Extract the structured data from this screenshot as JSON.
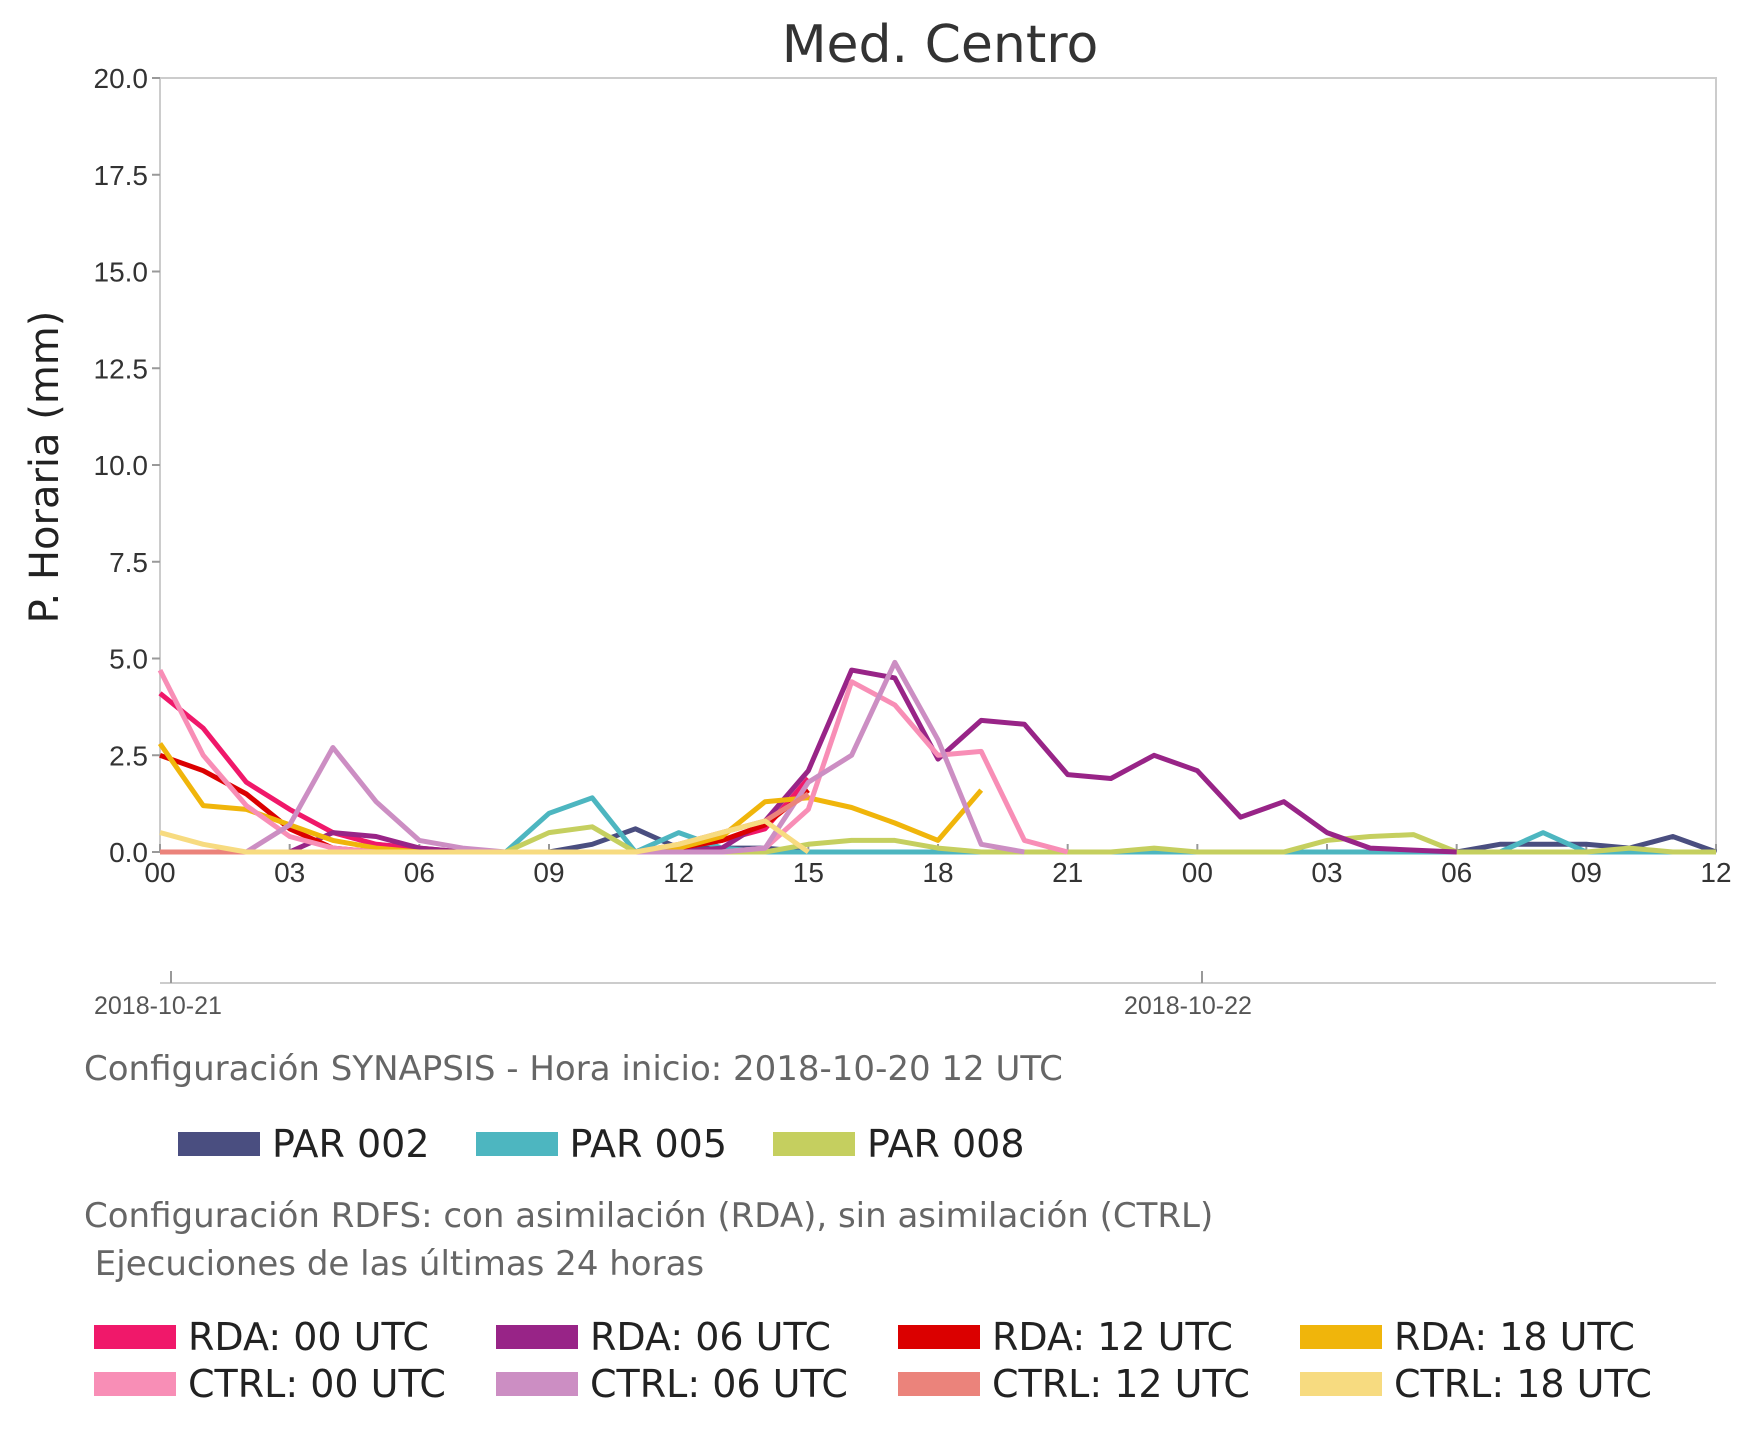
{
  "chart_data": {
    "type": "line",
    "title": "Med. Centro",
    "ylabel": "P. Horaria (mm)",
    "xlabel": "",
    "ylim": [
      0,
      20
    ],
    "yticks": [
      "0.0",
      "2.5",
      "5.0",
      "7.5",
      "10.0",
      "12.5",
      "15.0",
      "17.5",
      "20.0"
    ],
    "x_hours": [
      0,
      3,
      6,
      9,
      12,
      15,
      18,
      21,
      24,
      27,
      30,
      33,
      36
    ],
    "xtick_labels": [
      "00",
      "03",
      "06",
      "09",
      "12",
      "15",
      "18",
      "21",
      "00",
      "03",
      "06",
      "09",
      "12"
    ],
    "date_labels": [
      "2018-10-21",
      "2018-10-22"
    ],
    "grid": false,
    "series": [
      {
        "name": "PAR 002",
        "color": "#4a4e80",
        "x": [
          0,
          1,
          2,
          3,
          4,
          5,
          6,
          7,
          8,
          9,
          10,
          11,
          12,
          13,
          14,
          15,
          16,
          17,
          18,
          19,
          20,
          21,
          22,
          23,
          24,
          25,
          26,
          27,
          28,
          29,
          30,
          31,
          32,
          33,
          34,
          35,
          36
        ],
        "values": [
          0,
          0,
          0,
          0,
          0,
          0,
          0,
          0,
          0,
          0,
          0.2,
          0.6,
          0.1,
          0.1,
          0.1,
          0,
          0,
          0,
          0,
          0,
          0,
          0,
          0,
          0,
          0,
          0,
          0,
          0,
          0,
          0,
          0,
          0.2,
          0.2,
          0.2,
          0.1,
          0.4,
          0
        ]
      },
      {
        "name": "PAR 005",
        "color": "#4db6c0",
        "x": [
          0,
          1,
          2,
          3,
          4,
          5,
          6,
          7,
          8,
          9,
          10,
          11,
          12,
          13,
          14,
          15,
          16,
          17,
          18,
          19,
          20,
          21,
          22,
          23,
          24,
          25,
          26,
          27,
          28,
          29,
          30,
          31,
          32,
          33,
          34,
          35,
          36
        ],
        "values": [
          0,
          0,
          0,
          0,
          0,
          0,
          0,
          0,
          0,
          1.0,
          1.4,
          0,
          0.5,
          0.1,
          0,
          0,
          0,
          0,
          0,
          0,
          0,
          0,
          0,
          0,
          0,
          0,
          0,
          0,
          0,
          0,
          0,
          0,
          0.5,
          0,
          0,
          0,
          0
        ]
      },
      {
        "name": "PAR 008",
        "color": "#c5cf5f",
        "x": [
          0,
          1,
          2,
          3,
          4,
          5,
          6,
          7,
          8,
          9,
          10,
          11,
          12,
          13,
          14,
          15,
          16,
          17,
          18,
          19,
          20,
          21,
          22,
          23,
          24,
          25,
          26,
          27,
          28,
          29,
          30,
          31,
          32,
          33,
          34,
          35,
          36
        ],
        "values": [
          0,
          0,
          0,
          0,
          0,
          0,
          0,
          0,
          0,
          0.5,
          0.65,
          0,
          0,
          0,
          0,
          0.2,
          0.3,
          0.3,
          0.1,
          0,
          0,
          0,
          0,
          0.1,
          0,
          0,
          0,
          0.3,
          0.4,
          0.45,
          0,
          0,
          0,
          0,
          0.1,
          0,
          0
        ]
      },
      {
        "name": "RDA: 00 UTC",
        "color": "#f0186a",
        "x": [
          0,
          1,
          2,
          3,
          4,
          5,
          6,
          7,
          8,
          9,
          10,
          11,
          12,
          13,
          14,
          15
        ],
        "values": [
          4.1,
          3.2,
          1.8,
          1.1,
          0.5,
          0.2,
          0.1,
          0,
          0,
          0,
          0,
          0,
          0.1,
          0.3,
          0.6,
          1.9
        ]
      },
      {
        "name": "RDA: 06 UTC",
        "color": "#982487",
        "x": [
          3,
          4,
          5,
          6,
          7,
          8,
          9,
          10,
          11,
          12,
          13,
          14,
          15,
          16,
          17,
          18,
          19,
          20,
          21,
          22,
          23,
          24,
          25,
          26,
          27,
          28,
          29,
          30
        ],
        "values": [
          0,
          0.5,
          0.4,
          0.1,
          0,
          0,
          0,
          0,
          0,
          0,
          0.1,
          0.8,
          2.1,
          4.7,
          4.5,
          2.4,
          3.4,
          3.3,
          2.0,
          1.9,
          2.5,
          2.1,
          0.9,
          1.3,
          0.5,
          0.1,
          0.05,
          0
        ]
      },
      {
        "name": "RDA: 12 UTC",
        "color": "#db0000",
        "x": [
          0,
          1,
          2,
          3,
          4,
          5,
          6,
          7,
          8,
          9,
          10,
          11,
          12,
          13,
          14,
          15
        ],
        "values": [
          2.5,
          2.1,
          1.5,
          0.6,
          0.1,
          0,
          0,
          0,
          0,
          0,
          0,
          0,
          0.1,
          0.3,
          0.7,
          1.6
        ]
      },
      {
        "name": "RDA: 18 UTC",
        "color": "#f0b50b",
        "x": [
          0,
          1,
          2,
          3,
          4,
          5,
          6,
          7,
          8,
          9,
          10,
          11,
          12,
          13,
          14,
          15,
          16,
          17,
          18,
          19
        ],
        "values": [
          2.8,
          1.2,
          1.1,
          0.7,
          0.3,
          0.1,
          0,
          0,
          0,
          0,
          0,
          0,
          0.1,
          0.4,
          1.3,
          1.4,
          1.15,
          0.75,
          0.3,
          1.6
        ]
      },
      {
        "name": "CTRL: 00 UTC",
        "color": "#f88eb6",
        "x": [
          0,
          1,
          2,
          3,
          4,
          5,
          6,
          7,
          8,
          9,
          10,
          11,
          12,
          13,
          14,
          15,
          16,
          17,
          18,
          19,
          20,
          21
        ],
        "values": [
          4.7,
          2.5,
          1.2,
          0.4,
          0.1,
          0,
          0,
          0,
          0,
          0,
          0,
          0,
          0,
          0,
          0.1,
          1.1,
          4.4,
          3.8,
          2.5,
          2.6,
          0.3,
          0
        ]
      },
      {
        "name": "CTRL: 06 UTC",
        "color": "#cc8ec3",
        "x": [
          2,
          3,
          4,
          5,
          6,
          7,
          8,
          9,
          10,
          11,
          12,
          13,
          14,
          15,
          16,
          17,
          18,
          19,
          20
        ],
        "values": [
          0,
          0.7,
          2.7,
          1.3,
          0.3,
          0.1,
          0,
          0,
          0,
          0,
          0,
          0,
          0.1,
          1.8,
          2.5,
          4.9,
          2.9,
          0.2,
          0
        ]
      },
      {
        "name": "CTRL: 12 UTC",
        "color": "#eb837b",
        "x": [
          0,
          1,
          2,
          3,
          4,
          5,
          6,
          7,
          8,
          9,
          10,
          11,
          12,
          13,
          14,
          15
        ],
        "values": [
          0,
          0,
          0,
          0,
          0,
          0,
          0,
          0,
          0,
          0,
          0,
          0,
          0.2,
          0.5,
          0.8,
          1.5
        ]
      },
      {
        "name": "CTRL: 18 UTC",
        "color": "#f7db80",
        "x": [
          0,
          1,
          2,
          3,
          4,
          5,
          6,
          7,
          8,
          9,
          10,
          11,
          12,
          13,
          14,
          15
        ],
        "values": [
          0.5,
          0.2,
          0,
          0,
          0,
          0,
          0,
          0,
          0,
          0,
          0,
          0,
          0.2,
          0.5,
          0.8,
          0
        ]
      }
    ]
  },
  "info": {
    "synapsis_text": "Configuración SYNAPSIS - Hora inicio: 2018-10-20 12 UTC",
    "rdfs_text_line1": "Configuración RDFS: con asimilación (RDA), sin asimilación (CTRL)",
    "rdfs_text_line2": " Ejecuciones de las últimas 24 horas"
  },
  "legend_par": [
    {
      "label": "PAR 002",
      "color": "#4a4e80"
    },
    {
      "label": "PAR 005",
      "color": "#4db6c0"
    },
    {
      "label": "PAR 008",
      "color": "#c5cf5f"
    }
  ],
  "legend_rdfs_row1": [
    {
      "label": "RDA: 00 UTC",
      "color": "#f0186a"
    },
    {
      "label": "RDA: 06 UTC",
      "color": "#982487"
    },
    {
      "label": "RDA: 12 UTC",
      "color": "#db0000"
    },
    {
      "label": "RDA: 18 UTC",
      "color": "#f0b50b"
    }
  ],
  "legend_rdfs_row2": [
    {
      "label": "CTRL: 00 UTC",
      "color": "#f88eb6"
    },
    {
      "label": "CTRL: 06 UTC",
      "color": "#cc8ec3"
    },
    {
      "label": "CTRL: 12 UTC",
      "color": "#eb837b"
    },
    {
      "label": "CTRL: 18 UTC",
      "color": "#f7db80"
    }
  ]
}
